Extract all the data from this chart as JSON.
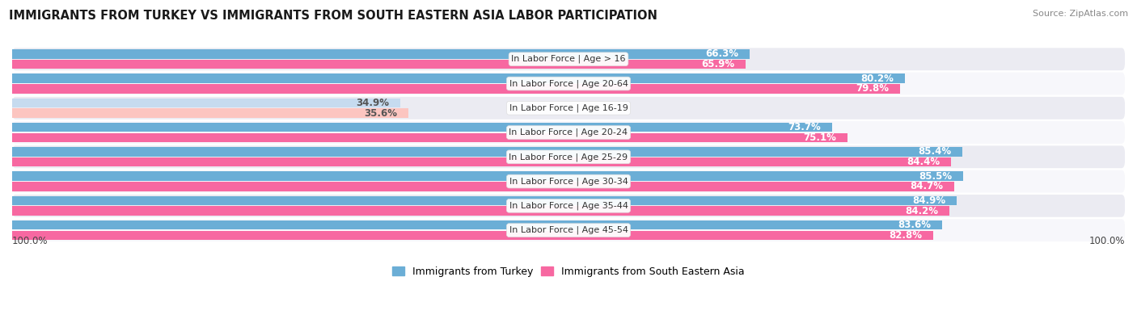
{
  "title": "IMMIGRANTS FROM TURKEY VS IMMIGRANTS FROM SOUTH EASTERN ASIA LABOR PARTICIPATION",
  "source": "Source: ZipAtlas.com",
  "categories": [
    "In Labor Force | Age > 16",
    "In Labor Force | Age 20-64",
    "In Labor Force | Age 16-19",
    "In Labor Force | Age 20-24",
    "In Labor Force | Age 25-29",
    "In Labor Force | Age 30-34",
    "In Labor Force | Age 35-44",
    "In Labor Force | Age 45-54"
  ],
  "turkey_values": [
    66.3,
    80.2,
    34.9,
    73.7,
    85.4,
    85.5,
    84.9,
    83.6
  ],
  "sea_values": [
    65.9,
    79.8,
    35.6,
    75.1,
    84.4,
    84.7,
    84.2,
    82.8
  ],
  "turkey_color": "#6baed6",
  "turkey_color_light": "#c6dbef",
  "sea_color": "#f768a1",
  "sea_color_light": "#fcc5c0",
  "row_bg_even": "#ebebf2",
  "row_bg_odd": "#f7f7fb",
  "max_value": 100.0,
  "legend_turkey": "Immigrants from Turkey",
  "legend_sea": "Immigrants from South Eastern Asia",
  "title_fontsize": 10.5,
  "label_fontsize": 8.0,
  "value_fontsize": 8.5,
  "footer_value": "100.0%"
}
